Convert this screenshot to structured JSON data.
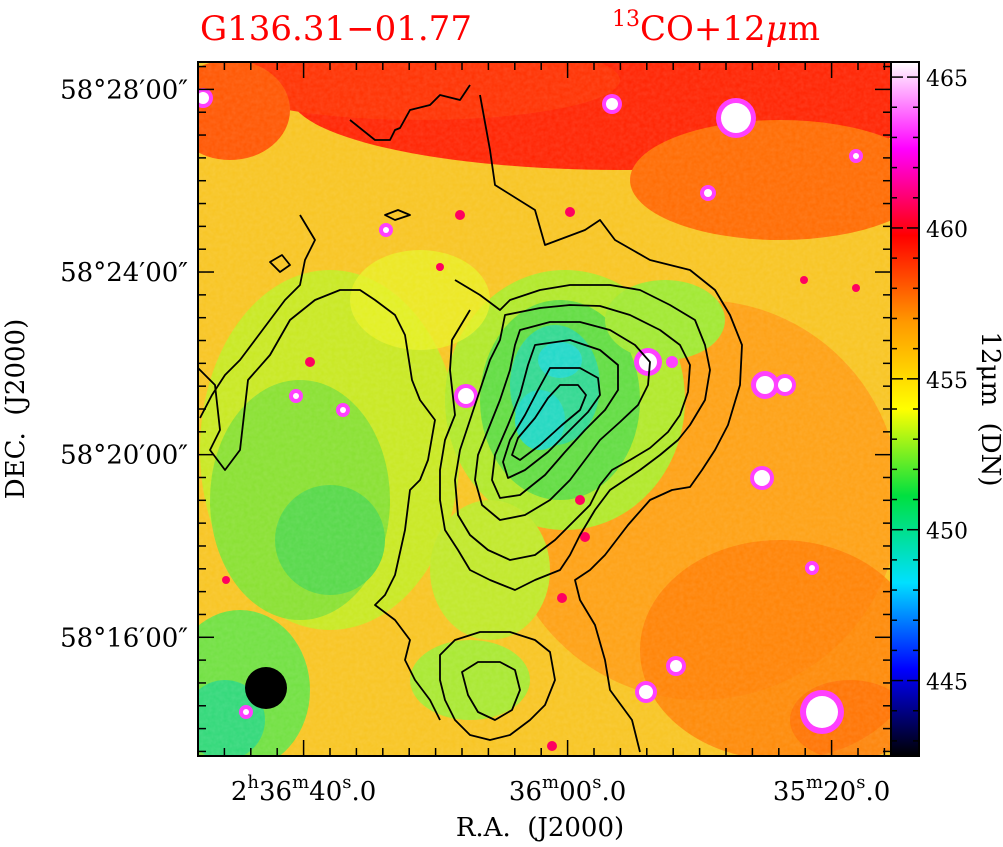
{
  "chart_data": {
    "type": "heatmap",
    "title": "G136.31−01.77",
    "overlay_label": {
      "prefix": "13",
      "text": "CO+12",
      "mu": "μ",
      "unit": "m"
    },
    "xlabel": "R.A.  (J2000)",
    "ylabel": "DEC.  (J2000)",
    "colorbar_label": "12μm  (DN)",
    "x_ticks": [
      {
        "h": "2",
        "hs": "h",
        "m": "36",
        "ms": "m",
        "s": "40",
        "ss": "s",
        "frac": ".0",
        "value_s": 160
      },
      {
        "h": "",
        "hs": "",
        "m": "36",
        "ms": "m",
        "s": "00",
        "ss": "s",
        "frac": ".0",
        "value_s": 120
      },
      {
        "h": "",
        "hs": "",
        "m": "35",
        "ms": "m",
        "s": "20",
        "ss": "s",
        "frac": ".0",
        "value_s": 80
      }
    ],
    "y_ticks": [
      "58°28′00″",
      "58°24′00″",
      "58°20′00″",
      "58°16′00″"
    ],
    "y_tick_values_arcmin": [
      28,
      24,
      20,
      16
    ],
    "x_range_s": [
      176,
      71
    ],
    "y_range_arcmin": [
      13.4,
      28.6
    ],
    "colorbar_ticks": [
      465,
      460,
      455,
      450,
      445
    ],
    "colorbar_range": [
      442.5,
      465.5
    ],
    "colormap": [
      "#000000",
      "#0000ff",
      "#00e0ff",
      "#00e040",
      "#ffff00",
      "#ff9900",
      "#ff0000",
      "#ff00ff",
      "#ffffff"
    ],
    "contour_color": "#000000",
    "beam": {
      "ra_s": 166,
      "dec_arcmin": 15.2,
      "diameter_arcmin": 0.9
    }
  },
  "colors": {
    "title": "#ff0000",
    "frame": "#000000"
  }
}
